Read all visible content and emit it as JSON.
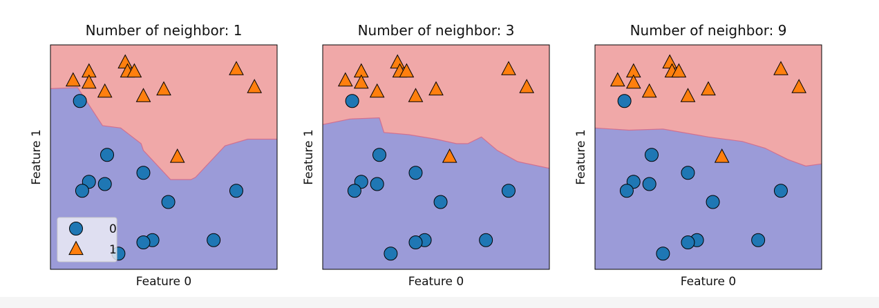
{
  "colors": {
    "region_class0": "#9b9bd8",
    "region_class1": "#f0a8a8",
    "boundary": "#d07090",
    "marker_class0": "#1f77b4",
    "marker_class1": "#ff7f0e",
    "marker_edge": "#000000",
    "legend_bg": "#f0f0f8",
    "axes_edge": "#000000"
  },
  "legend": {
    "entries": [
      {
        "label": "0",
        "marker": "circle"
      },
      {
        "label": "1",
        "marker": "triangle"
      }
    ],
    "location": "lower-left",
    "shown_in_panel": 0
  },
  "chart_data": [
    {
      "type": "scatter",
      "title": "Number of neighbor: 1",
      "xlabel": "Feature 0",
      "ylabel": "Feature 1",
      "ticks": "none",
      "xlim": [
        0,
        100
      ],
      "ylim": [
        0,
        100
      ],
      "boundary": [
        [
          0,
          80.5
        ],
        [
          12,
          81
        ],
        [
          23,
          64
        ],
        [
          31,
          63
        ],
        [
          40,
          56
        ],
        [
          41,
          53
        ],
        [
          53,
          40
        ],
        [
          62,
          40
        ],
        [
          64,
          41
        ],
        [
          77,
          55
        ],
        [
          87,
          58
        ],
        [
          100,
          58
        ]
      ],
      "series": [
        {
          "class": "0",
          "marker": "circle",
          "points": [
            [
              13,
              75
            ],
            [
              25,
              51
            ],
            [
              41,
              43
            ],
            [
              17,
              39
            ],
            [
              24,
              38
            ],
            [
              14,
              35
            ],
            [
              82,
              35
            ],
            [
              52,
              30
            ],
            [
              45,
              13
            ],
            [
              41,
              12
            ],
            [
              72,
              13
            ],
            [
              30,
              7
            ]
          ]
        },
        {
          "class": "1",
          "marker": "triangle",
          "points": [
            [
              33,
              92
            ],
            [
              34,
              88
            ],
            [
              37,
              88
            ],
            [
              17,
              88
            ],
            [
              10,
              84
            ],
            [
              17,
              83
            ],
            [
              82,
              89
            ],
            [
              90,
              81
            ],
            [
              24,
              79
            ],
            [
              50,
              80
            ],
            [
              41,
              77
            ],
            [
              56,
              50
            ]
          ]
        }
      ]
    },
    {
      "type": "scatter",
      "title": "Number of neighbor: 3",
      "xlabel": "Feature 0",
      "ylabel": "Feature 1",
      "ticks": "none",
      "xlim": [
        0,
        100
      ],
      "ylim": [
        0,
        100
      ],
      "boundary": [
        [
          0,
          64.5
        ],
        [
          12,
          67
        ],
        [
          25,
          67.5
        ],
        [
          27,
          61
        ],
        [
          38,
          60
        ],
        [
          50,
          58
        ],
        [
          59,
          56
        ],
        [
          64,
          56
        ],
        [
          70,
          59
        ],
        [
          77,
          53
        ],
        [
          86,
          48
        ],
        [
          100,
          45
        ]
      ],
      "series": [
        {
          "class": "0",
          "marker": "circle",
          "points": [
            [
              13,
              75
            ],
            [
              25,
              51
            ],
            [
              41,
              43
            ],
            [
              17,
              39
            ],
            [
              24,
              38
            ],
            [
              14,
              35
            ],
            [
              82,
              35
            ],
            [
              52,
              30
            ],
            [
              45,
              13
            ],
            [
              41,
              12
            ],
            [
              72,
              13
            ],
            [
              30,
              7
            ]
          ]
        },
        {
          "class": "1",
          "marker": "triangle",
          "points": [
            [
              33,
              92
            ],
            [
              34,
              88
            ],
            [
              37,
              88
            ],
            [
              17,
              88
            ],
            [
              10,
              84
            ],
            [
              17,
              83
            ],
            [
              82,
              89
            ],
            [
              90,
              81
            ],
            [
              24,
              79
            ],
            [
              50,
              80
            ],
            [
              41,
              77
            ],
            [
              56,
              50
            ]
          ]
        }
      ]
    },
    {
      "type": "scatter",
      "title": "Number of neighbor: 9",
      "xlabel": "Feature 0",
      "ylabel": "Feature 1",
      "ticks": "none",
      "xlim": [
        0,
        100
      ],
      "ylim": [
        0,
        100
      ],
      "boundary": [
        [
          0,
          63
        ],
        [
          15,
          62
        ],
        [
          30,
          62.5
        ],
        [
          50,
          59
        ],
        [
          65,
          57
        ],
        [
          75,
          54
        ],
        [
          85,
          49
        ],
        [
          93,
          46
        ],
        [
          100,
          47
        ]
      ],
      "series": [
        {
          "class": "0",
          "marker": "circle",
          "points": [
            [
              13,
              75
            ],
            [
              25,
              51
            ],
            [
              41,
              43
            ],
            [
              17,
              39
            ],
            [
              24,
              38
            ],
            [
              14,
              35
            ],
            [
              82,
              35
            ],
            [
              52,
              30
            ],
            [
              45,
              13
            ],
            [
              41,
              12
            ],
            [
              72,
              13
            ],
            [
              30,
              7
            ]
          ]
        },
        {
          "class": "1",
          "marker": "triangle",
          "points": [
            [
              33,
              92
            ],
            [
              34,
              88
            ],
            [
              37,
              88
            ],
            [
              17,
              88
            ],
            [
              10,
              84
            ],
            [
              17,
              83
            ],
            [
              82,
              89
            ],
            [
              90,
              81
            ],
            [
              24,
              79
            ],
            [
              50,
              80
            ],
            [
              41,
              77
            ],
            [
              56,
              50
            ]
          ]
        }
      ]
    }
  ]
}
